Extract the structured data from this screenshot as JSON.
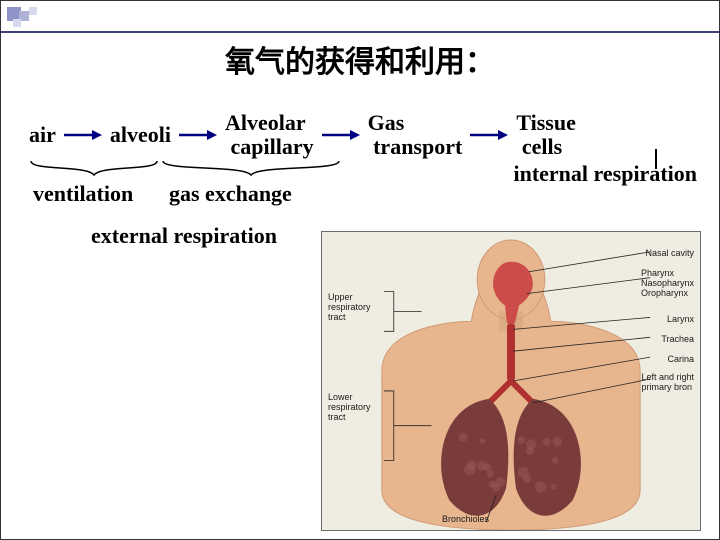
{
  "slide": {
    "title": "氧气的获得和利用：",
    "title_fontsize": 30,
    "title_color": "#000000",
    "background": "#ffffff",
    "accent_line_color": "#3a3f7a"
  },
  "flow": {
    "node_fontsize": 22,
    "node_color": "#000000",
    "arrow_color": "#000080",
    "arrow_length": 28,
    "nodes": [
      {
        "id": "air",
        "label": "air"
      },
      {
        "id": "alveoli",
        "label": "alveoli"
      },
      {
        "id": "capillary",
        "label": "Alveolar\n capillary"
      },
      {
        "id": "transport",
        "label": "Gas\n transport"
      },
      {
        "id": "cells",
        "label": "Tissue\n cells"
      }
    ]
  },
  "groupings": {
    "brace_color": "#000000",
    "ventilation": {
      "label": "ventilation",
      "fontsize": 22
    },
    "gas_exchange": {
      "label": "gas exchange",
      "fontsize": 22
    },
    "external_respiration": {
      "label": "external respiration",
      "fontsize": 22
    },
    "internal_respiration": {
      "label": "internal respiration",
      "fontsize": 22
    }
  },
  "anatomy": {
    "border_color": "#6b6b6b",
    "bg": "#efece1",
    "skin_color": "#e7b58e",
    "skin_shadow": "#cf9a73",
    "lung_color": "#7a3b3b",
    "lung_highlight": "#9c5a5a",
    "trachea_color": "#b03030",
    "nasal_color": "#c84040",
    "leader_color": "#222222",
    "label_fontsize": 9,
    "labels": {
      "nasal": "Nasal cavity",
      "pharynx": "Pharynx\nNasopharynx\nOropharynx",
      "larynx": "Larynx",
      "trachea": "Trachea",
      "carina": "Carina",
      "bronchi": "Left and right\nprimary bron",
      "upper": "Upper\nrespiratory\ntract",
      "lower": "Lower\nrespiratory\ntract",
      "bronchioles": "Bronchioles"
    }
  }
}
